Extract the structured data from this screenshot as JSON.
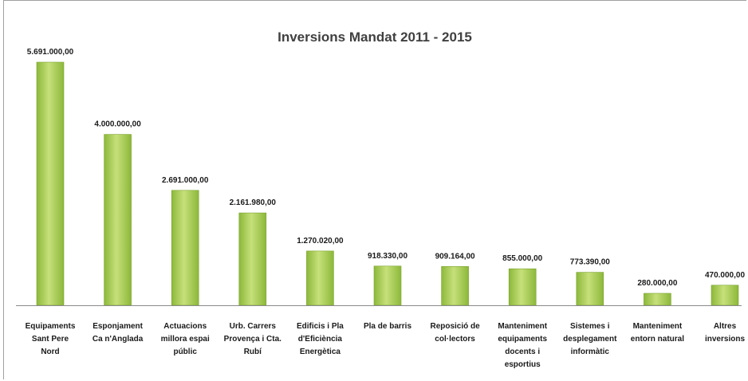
{
  "chart_data": {
    "type": "bar",
    "title": "Inversions Mandat 2011 - 2015",
    "xlabel": "",
    "ylabel": "",
    "grid": false,
    "legend": "none",
    "categories": [
      [
        "Equipaments",
        "Sant Pere",
        "Nord"
      ],
      [
        "Esponjament",
        "Ca n'Anglada"
      ],
      [
        "Actuacions",
        "millora espai",
        "públic"
      ],
      [
        "Urb. Carrers",
        "Provença i Cta.",
        "Rubí"
      ],
      [
        "Edificis i Pla",
        "d'Eficiència",
        "Energètica"
      ],
      [
        "Pla de barris"
      ],
      [
        "Reposició de",
        "col·lectors"
      ],
      [
        "Manteniment",
        "equipaments",
        "docents i",
        "esportius"
      ],
      [
        "Sistemes i",
        "desplegament",
        "informàtic"
      ],
      [
        "Manteniment",
        "entorn natural"
      ],
      [
        "Altres",
        "inversions"
      ]
    ],
    "values": [
      5691000,
      4000000,
      2691000,
      2161980,
      1270020,
      918330,
      909164,
      855000,
      773390,
      280000,
      470000
    ],
    "value_labels": [
      "5.691.000,00",
      "4.000.000,00",
      "2.691.000,00",
      "2.161.980,00",
      "1.270.020,00",
      "918.330,00",
      "909.164,00",
      "855.000,00",
      "773.390,00",
      "280.000,00",
      "470.000,00"
    ],
    "bar_color": "#8cb83a",
    "bar_highlight": "#c6e07a",
    "axis_color": "#8a8a8a"
  }
}
